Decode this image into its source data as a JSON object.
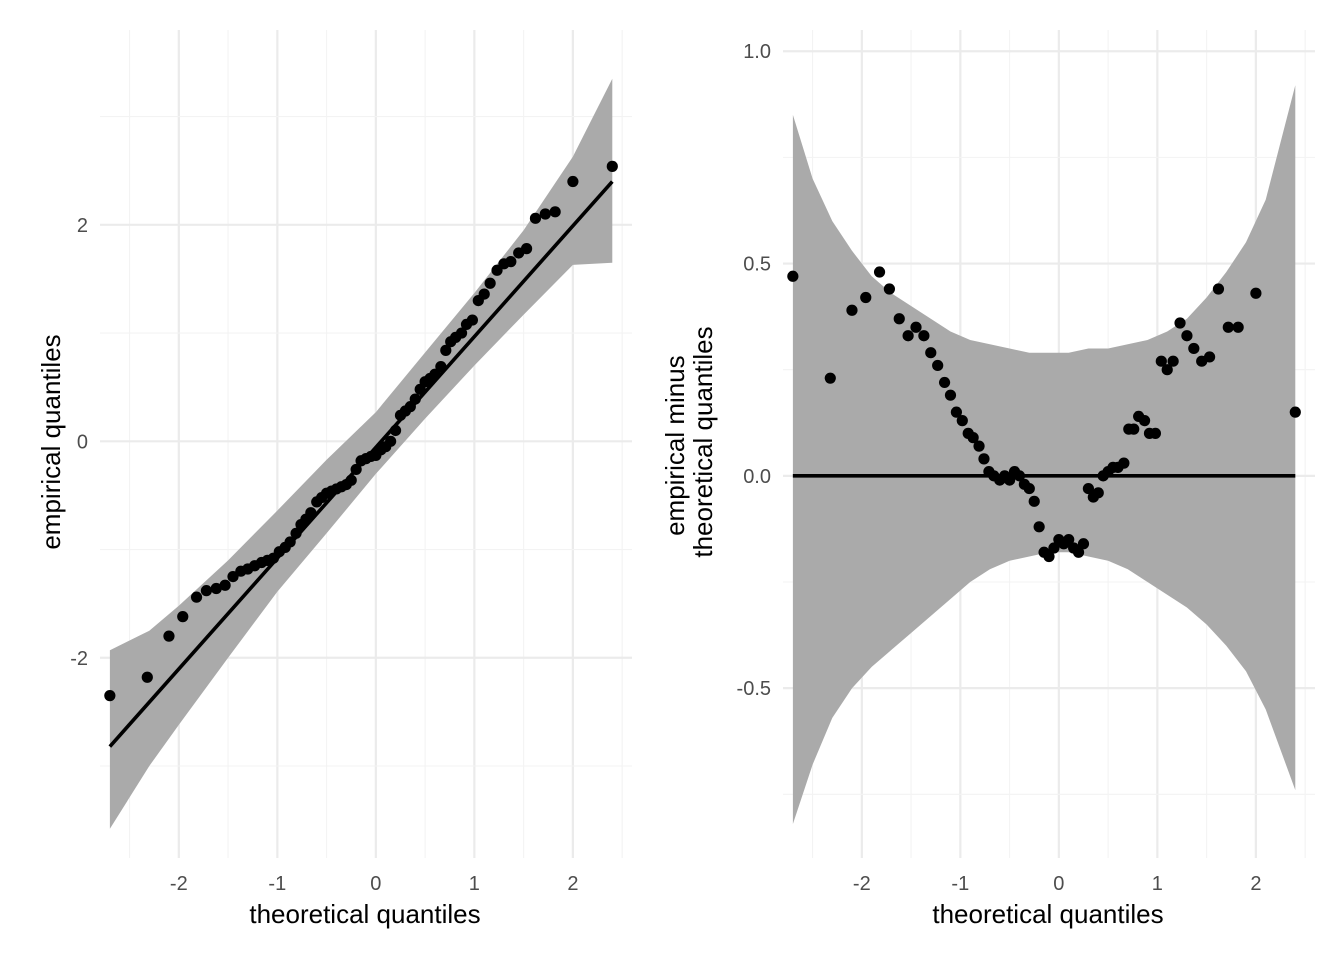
{
  "colors": {
    "band": "#aaaaaa",
    "line": "#000000",
    "point": "#000000",
    "grid": "#ebebeb"
  },
  "chart_data": [
    {
      "type": "scatter",
      "title": "",
      "xlabel": "theoretical quantiles",
      "ylabel": "empirical quantiles",
      "xlim": [
        -2.8,
        2.6
      ],
      "ylim": [
        -3.85,
        3.8
      ],
      "x_ticks": [
        -2,
        -1,
        0,
        1,
        2
      ],
      "x_tick_labels": [
        "-2",
        "-1",
        "0",
        "1",
        "2"
      ],
      "y_ticks": [
        -2,
        0,
        2
      ],
      "y_tick_labels": [
        "-2",
        "0",
        "2"
      ],
      "grid": true,
      "reference_line": {
        "x": [
          -2.7,
          2.4
        ],
        "y": [
          -2.82,
          2.4
        ]
      },
      "band": {
        "x": [
          -2.7,
          -2.3,
          -2.0,
          -1.5,
          -1.0,
          -0.5,
          0.0,
          0.5,
          1.0,
          1.5,
          2.0,
          2.4
        ],
        "lower": [
          -3.58,
          -3.0,
          -2.62,
          -2.0,
          -1.39,
          -0.85,
          -0.3,
          0.21,
          0.7,
          1.17,
          1.63,
          1.65
        ],
        "upper": [
          -1.93,
          -1.75,
          -1.52,
          -1.1,
          -0.64,
          -0.17,
          0.27,
          0.82,
          1.37,
          1.95,
          2.63,
          3.35
        ]
      },
      "points": {
        "x": [
          -2.7,
          -2.32,
          -2.1,
          -1.96,
          -1.82,
          -1.72,
          -1.62,
          -1.53,
          -1.45,
          -1.37,
          -1.3,
          -1.23,
          -1.16,
          -1.1,
          -1.04,
          -0.98,
          -0.92,
          -0.87,
          -0.81,
          -0.76,
          -0.71,
          -0.66,
          -0.6,
          -0.55,
          -0.5,
          -0.45,
          -0.4,
          -0.35,
          -0.3,
          -0.25,
          -0.2,
          -0.15,
          -0.1,
          -0.05,
          0.0,
          0.05,
          0.1,
          0.15,
          0.2,
          0.25,
          0.3,
          0.35,
          0.4,
          0.45,
          0.5,
          0.55,
          0.6,
          0.66,
          0.71,
          0.76,
          0.81,
          0.87,
          0.92,
          0.98,
          1.04,
          1.1,
          1.16,
          1.23,
          1.3,
          1.37,
          1.45,
          1.53,
          1.62,
          1.72,
          1.82,
          2.0,
          2.4
        ],
        "y": [
          -2.35,
          -2.18,
          -1.8,
          -1.62,
          -1.44,
          -1.38,
          -1.36,
          -1.33,
          -1.25,
          -1.2,
          -1.18,
          -1.15,
          -1.12,
          -1.1,
          -1.08,
          -1.02,
          -0.98,
          -0.93,
          -0.85,
          -0.77,
          -0.72,
          -0.66,
          -0.56,
          -0.52,
          -0.48,
          -0.46,
          -0.44,
          -0.42,
          -0.4,
          -0.36,
          -0.26,
          -0.18,
          -0.16,
          -0.14,
          -0.13,
          -0.08,
          -0.05,
          0.0,
          0.1,
          0.24,
          0.28,
          0.32,
          0.39,
          0.48,
          0.55,
          0.58,
          0.62,
          0.69,
          0.84,
          0.92,
          0.96,
          1.0,
          1.08,
          1.12,
          1.3,
          1.36,
          1.46,
          1.58,
          1.64,
          1.66,
          1.74,
          1.78,
          2.06,
          2.1,
          2.12,
          2.4,
          2.54
        ]
      }
    },
    {
      "type": "scatter",
      "title": "",
      "xlabel": "theoretical quantiles",
      "ylabel": "empirical minus\ntheoretical quantiles",
      "ylabel_lines": [
        "empirical minus",
        "theoretical quantiles"
      ],
      "xlim": [
        -2.8,
        2.6
      ],
      "ylim": [
        -0.9,
        1.05
      ],
      "x_ticks": [
        -2,
        -1,
        0,
        1,
        2
      ],
      "x_tick_labels": [
        "-2",
        "-1",
        "0",
        "1",
        "2"
      ],
      "y_ticks": [
        -0.5,
        0.0,
        0.5,
        1.0
      ],
      "y_tick_labels": [
        "-0.5",
        "0.0",
        "0.5",
        "1.0"
      ],
      "grid": true,
      "reference_line": {
        "x": [
          -2.7,
          2.4
        ],
        "y": [
          0.0,
          0.0
        ]
      },
      "band": {
        "x": [
          -2.7,
          -2.5,
          -2.3,
          -2.1,
          -1.9,
          -1.7,
          -1.5,
          -1.3,
          -1.1,
          -0.9,
          -0.7,
          -0.5,
          -0.3,
          -0.1,
          0.1,
          0.3,
          0.5,
          0.7,
          0.9,
          1.1,
          1.3,
          1.5,
          1.7,
          1.9,
          2.1,
          2.4
        ],
        "upper": [
          0.85,
          0.7,
          0.6,
          0.53,
          0.47,
          0.43,
          0.4,
          0.37,
          0.34,
          0.32,
          0.31,
          0.3,
          0.29,
          0.29,
          0.29,
          0.3,
          0.3,
          0.31,
          0.32,
          0.34,
          0.37,
          0.42,
          0.48,
          0.55,
          0.65,
          0.92
        ],
        "lower": [
          -0.82,
          -0.68,
          -0.57,
          -0.5,
          -0.45,
          -0.41,
          -0.37,
          -0.33,
          -0.29,
          -0.25,
          -0.22,
          -0.2,
          -0.19,
          -0.18,
          -0.18,
          -0.19,
          -0.2,
          -0.22,
          -0.25,
          -0.28,
          -0.31,
          -0.35,
          -0.4,
          -0.46,
          -0.55,
          -0.74
        ]
      },
      "points": {
        "x": [
          -2.7,
          -2.32,
          -2.1,
          -1.96,
          -1.82,
          -1.72,
          -1.62,
          -1.53,
          -1.45,
          -1.37,
          -1.3,
          -1.23,
          -1.16,
          -1.1,
          -1.04,
          -0.98,
          -0.92,
          -0.87,
          -0.81,
          -0.76,
          -0.71,
          -0.66,
          -0.6,
          -0.55,
          -0.5,
          -0.45,
          -0.4,
          -0.35,
          -0.3,
          -0.25,
          -0.2,
          -0.15,
          -0.1,
          -0.05,
          0.0,
          0.05,
          0.1,
          0.15,
          0.2,
          0.25,
          0.3,
          0.35,
          0.4,
          0.45,
          0.5,
          0.55,
          0.6,
          0.66,
          0.71,
          0.76,
          0.81,
          0.87,
          0.92,
          0.98,
          1.04,
          1.1,
          1.16,
          1.23,
          1.3,
          1.37,
          1.45,
          1.53,
          1.62,
          1.72,
          1.82,
          2.0,
          2.4
        ],
        "y": [
          0.47,
          0.23,
          0.39,
          0.42,
          0.48,
          0.44,
          0.37,
          0.33,
          0.35,
          0.33,
          0.29,
          0.26,
          0.22,
          0.19,
          0.15,
          0.13,
          0.1,
          0.09,
          0.07,
          0.04,
          0.01,
          0.0,
          -0.01,
          0.0,
          -0.01,
          0.01,
          0.0,
          -0.02,
          -0.03,
          -0.06,
          -0.12,
          -0.18,
          -0.19,
          -0.17,
          -0.15,
          -0.16,
          -0.15,
          -0.17,
          -0.18,
          -0.16,
          -0.03,
          -0.05,
          -0.04,
          0.0,
          0.01,
          0.02,
          0.02,
          0.03,
          0.11,
          0.11,
          0.14,
          0.13,
          0.1,
          0.1,
          0.27,
          0.25,
          0.27,
          0.36,
          0.33,
          0.3,
          0.27,
          0.28,
          0.44,
          0.35,
          0.35,
          0.43,
          0.15
        ]
      }
    }
  ]
}
